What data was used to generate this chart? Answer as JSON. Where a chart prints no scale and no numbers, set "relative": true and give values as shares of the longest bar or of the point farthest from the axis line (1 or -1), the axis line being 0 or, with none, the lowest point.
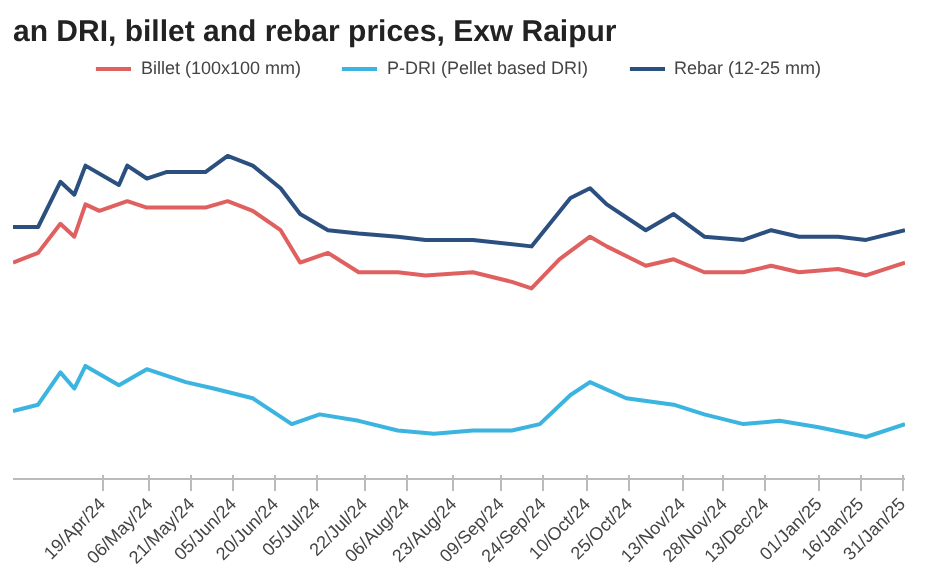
{
  "chart_data": {
    "type": "line",
    "title": "an DRI, billet and rebar prices, Exw  Raipur",
    "relative": true,
    "legend": "top",
    "marker": "none",
    "line_style": "solid",
    "xlim": [
      "2024-03-18",
      "2025-02-01"
    ],
    "xticks": [
      {
        "value": "2024-04-19",
        "label": "19/Apr/24"
      },
      {
        "value": "2024-05-06",
        "label": "06/May/24"
      },
      {
        "value": "2024-05-21",
        "label": "21/May/24"
      },
      {
        "value": "2024-06-05",
        "label": "05/Jun/24"
      },
      {
        "value": "2024-06-20",
        "label": "20/Jun/24"
      },
      {
        "value": "2024-07-05",
        "label": "05/Jul/24"
      },
      {
        "value": "2024-07-22",
        "label": "22/Jul/24"
      },
      {
        "value": "2024-08-06",
        "label": "06/Aug/24"
      },
      {
        "value": "2024-08-23",
        "label": "23/Aug/24"
      },
      {
        "value": "2024-09-09",
        "label": "09/Sep/24"
      },
      {
        "value": "2024-09-24",
        "label": "24/Sep/24"
      },
      {
        "value": "2024-10-10",
        "label": "10/Oct/24"
      },
      {
        "value": "2024-10-25",
        "label": "25/Oct/24"
      },
      {
        "value": "2024-11-13",
        "label": "13/Nov/24"
      },
      {
        "value": "2024-11-28",
        "label": "28/Nov/24"
      },
      {
        "value": "2024-12-13",
        "label": "13/Dec/24"
      },
      {
        "value": "2025-01-01",
        "label": "01/Jan/25"
      },
      {
        "value": "2025-01-16",
        "label": "16/Jan/25"
      },
      {
        "value": "2025-01-31",
        "label": "31/Jan/25"
      }
    ],
    "series": [
      {
        "name": "Billet (100x100 mm)",
        "color": "#e06060",
        "x": [
          "2024-03-18",
          "2024-03-27",
          "2024-04-04",
          "2024-04-09",
          "2024-04-13",
          "2024-04-18",
          "2024-04-28",
          "2024-05-05",
          "2024-05-26",
          "2024-06-03",
          "2024-06-12",
          "2024-06-22",
          "2024-06-29",
          "2024-07-09",
          "2024-07-20",
          "2024-08-03",
          "2024-08-13",
          "2024-08-30",
          "2024-09-13",
          "2024-09-20",
          "2024-09-30",
          "2024-10-11",
          "2024-10-17",
          "2024-10-31",
          "2024-11-10",
          "2024-11-21",
          "2024-12-05",
          "2024-12-15",
          "2024-12-25",
          "2025-01-08",
          "2025-01-18",
          "2025-02-01"
        ],
        "values": [
          0.67,
          0.7,
          0.79,
          0.75,
          0.85,
          0.83,
          0.86,
          0.84,
          0.84,
          0.86,
          0.83,
          0.77,
          0.67,
          0.7,
          0.64,
          0.64,
          0.63,
          0.64,
          0.61,
          0.59,
          0.68,
          0.75,
          0.72,
          0.66,
          0.68,
          0.64,
          0.64,
          0.66,
          0.64,
          0.65,
          0.63,
          0.67
        ]
      },
      {
        "name": "P-DRI (Pellet based DRI)",
        "color": "#3bb4e0",
        "x": [
          "2024-03-18",
          "2024-03-27",
          "2024-04-04",
          "2024-04-09",
          "2024-04-13",
          "2024-04-25",
          "2024-05-05",
          "2024-05-19",
          "2024-05-29",
          "2024-06-12",
          "2024-06-26",
          "2024-07-06",
          "2024-07-20",
          "2024-08-03",
          "2024-08-16",
          "2024-08-30",
          "2024-09-13",
          "2024-09-23",
          "2024-10-04",
          "2024-10-11",
          "2024-10-24",
          "2024-11-10",
          "2024-11-21",
          "2024-12-05",
          "2024-12-18",
          "2025-01-01",
          "2025-01-18",
          "2025-02-01"
        ],
        "values": [
          0.21,
          0.23,
          0.33,
          0.28,
          0.35,
          0.29,
          0.34,
          0.3,
          0.28,
          0.25,
          0.17,
          0.2,
          0.18,
          0.15,
          0.14,
          0.15,
          0.15,
          0.17,
          0.26,
          0.3,
          0.25,
          0.23,
          0.2,
          0.17,
          0.18,
          0.16,
          0.13,
          0.17
        ]
      },
      {
        "name": "Rebar (12-25 mm)",
        "color": "#2b4f7f",
        "x": [
          "2024-03-18",
          "2024-03-27",
          "2024-04-04",
          "2024-04-09",
          "2024-04-13",
          "2024-04-25",
          "2024-04-28",
          "2024-05-05",
          "2024-05-12",
          "2024-05-26",
          "2024-06-03",
          "2024-06-12",
          "2024-06-22",
          "2024-06-29",
          "2024-07-09",
          "2024-07-20",
          "2024-08-03",
          "2024-08-13",
          "2024-08-30",
          "2024-09-20",
          "2024-10-04",
          "2024-10-11",
          "2024-10-17",
          "2024-10-31",
          "2024-11-10",
          "2024-11-21",
          "2024-12-05",
          "2024-12-15",
          "2024-12-25",
          "2025-01-08",
          "2025-01-18",
          "2025-02-01"
        ],
        "values": [
          0.78,
          0.78,
          0.92,
          0.88,
          0.97,
          0.91,
          0.97,
          0.93,
          0.95,
          0.95,
          1.0,
          0.97,
          0.9,
          0.82,
          0.77,
          0.76,
          0.75,
          0.74,
          0.74,
          0.72,
          0.87,
          0.9,
          0.85,
          0.77,
          0.82,
          0.75,
          0.74,
          0.77,
          0.75,
          0.75,
          0.74,
          0.77
        ]
      }
    ]
  }
}
